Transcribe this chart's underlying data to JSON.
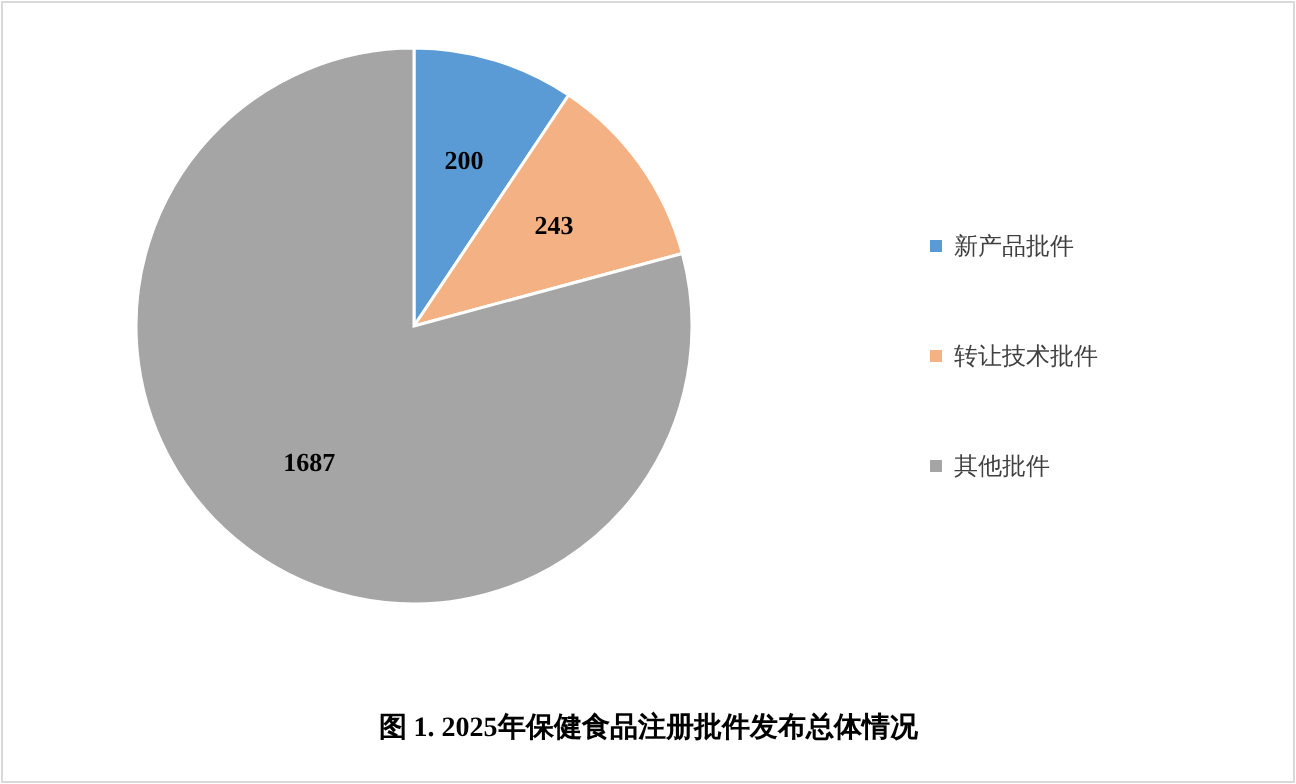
{
  "chart_data": {
    "type": "pie",
    "title": "图 1. 2025年保健食品注册批件发布总体情况",
    "categories": [
      "新产品批件",
      "转让技术批件",
      "其他批件"
    ],
    "values": [
      200,
      243,
      1687
    ],
    "colors": [
      "#5b9bd5",
      "#f4b183",
      "#a5a5a5"
    ],
    "data_labels": true,
    "legend": "right"
  }
}
